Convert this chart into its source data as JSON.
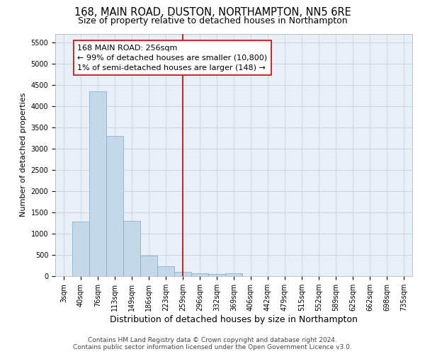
{
  "title": "168, MAIN ROAD, DUSTON, NORTHAMPTON, NN5 6RE",
  "subtitle": "Size of property relative to detached houses in Northampton",
  "xlabel": "Distribution of detached houses by size in Northampton",
  "ylabel": "Number of detached properties",
  "footer_line1": "Contains HM Land Registry data © Crown copyright and database right 2024.",
  "footer_line2": "Contains public sector information licensed under the Open Government Licence v3.0.",
  "categories": [
    "3sqm",
    "40sqm",
    "76sqm",
    "113sqm",
    "149sqm",
    "186sqm",
    "223sqm",
    "259sqm",
    "296sqm",
    "332sqm",
    "369sqm",
    "406sqm",
    "442sqm",
    "479sqm",
    "515sqm",
    "552sqm",
    "589sqm",
    "625sqm",
    "662sqm",
    "698sqm",
    "735sqm"
  ],
  "bar_heights": [
    0,
    1280,
    4350,
    3300,
    1300,
    480,
    230,
    100,
    65,
    50,
    60,
    0,
    0,
    0,
    0,
    0,
    0,
    0,
    0,
    0,
    0
  ],
  "bar_color": "#c5d8ea",
  "bar_edge_color": "#7aaac8",
  "grid_color": "#c0ccd8",
  "bg_color": "#e8eff6",
  "vline_x_idx": 7,
  "vline_color": "#cc0000",
  "annotation_text_line1": "168 MAIN ROAD: 256sqm",
  "annotation_text_line2": "← 99% of detached houses are smaller (10,800)",
  "annotation_text_line3": "1% of semi-detached houses are larger (148) →",
  "ylim": [
    0,
    5700
  ],
  "yticks": [
    0,
    500,
    1000,
    1500,
    2000,
    2500,
    3000,
    3500,
    4000,
    4500,
    5000,
    5500
  ],
  "title_fontsize": 10.5,
  "subtitle_fontsize": 9,
  "xlabel_fontsize": 9,
  "ylabel_fontsize": 8,
  "tick_fontsize": 7,
  "annotation_fontsize": 8,
  "footer_fontsize": 6.5
}
